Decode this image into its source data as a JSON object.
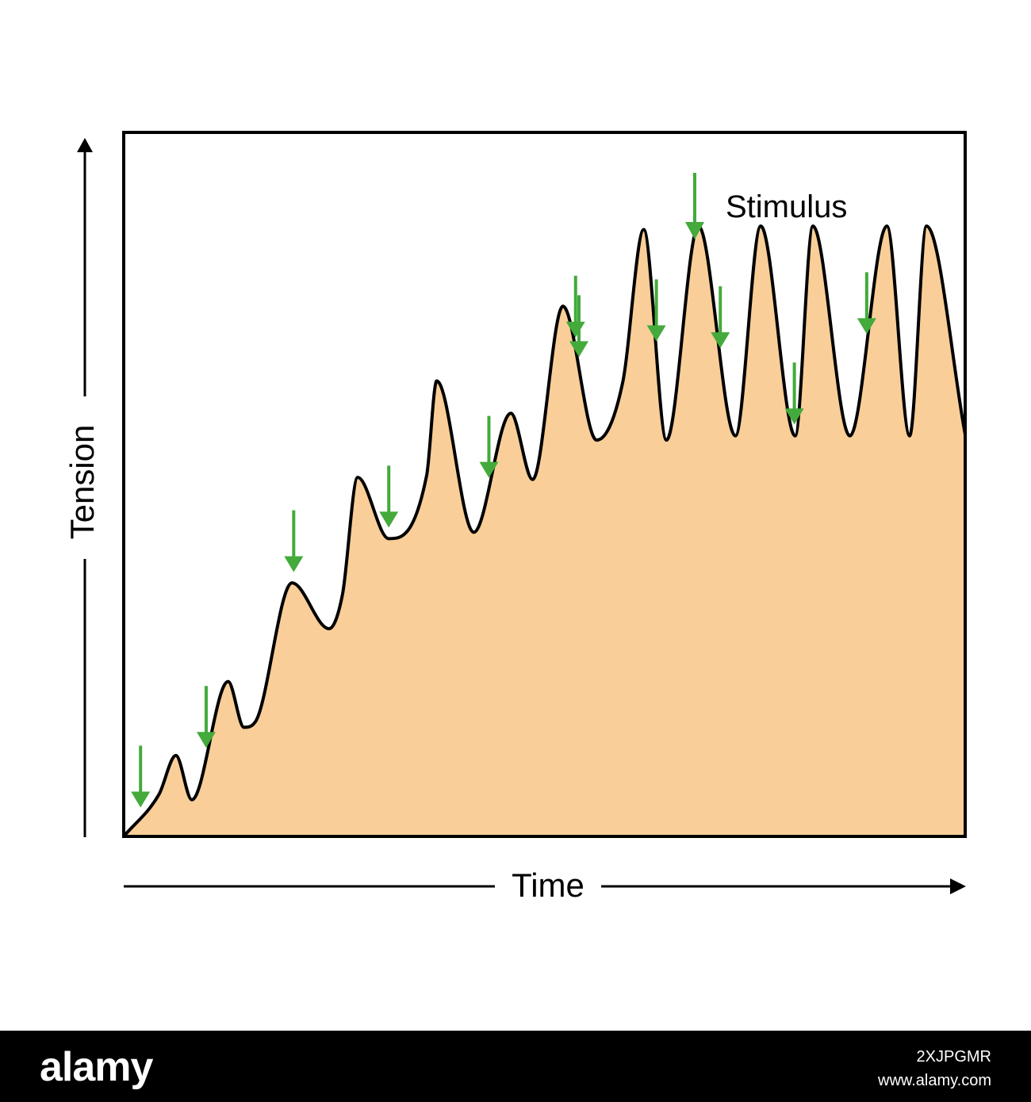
{
  "chart_data": {
    "type": "area",
    "title": "",
    "xlabel": "Time",
    "ylabel": "Tension",
    "legend": {
      "label": "Stimulus",
      "placement": "top-right"
    },
    "grid": false,
    "xlim": [
      0,
      1
    ],
    "ylim": [
      0,
      1
    ],
    "series": [
      {
        "x": [
          0,
          0.042,
          0.062,
          0.081,
          0.124,
          0.143,
          0.157,
          0.2,
          0.244,
          0.26,
          0.278,
          0.315,
          0.36,
          0.372,
          0.416,
          0.46,
          0.486,
          0.522,
          0.562,
          0.593,
          0.618,
          0.645,
          0.683,
          0.727,
          0.757,
          0.798,
          0.819,
          0.863,
          0.907,
          0.934,
          0.954,
          1.0
        ],
        "y": [
          0,
          0.06,
          0.115,
          0.052,
          0.22,
          0.155,
          0.164,
          0.36,
          0.295,
          0.344,
          0.51,
          0.423,
          0.513,
          0.647,
          0.432,
          0.601,
          0.507,
          0.753,
          0.563,
          0.645,
          0.862,
          0.563,
          0.867,
          0.569,
          0.867,
          0.569,
          0.867,
          0.569,
          0.867,
          0.569,
          0.867,
          0.571
        ]
      }
    ],
    "stimuli_x": [
      0.02,
      0.098,
      0.202,
      0.315,
      0.434,
      0.541,
      0.537,
      0.633,
      0.709,
      0.797,
      0.883,
      0.601,
      0.632
    ],
    "colors": {
      "fill": "#f9ce98",
      "line": "#000000",
      "arrow": "#43aa3b"
    }
  },
  "watermark": {
    "brand": "alamy",
    "image_id": "2XJPGMR",
    "site": "www.alamy.com"
  }
}
